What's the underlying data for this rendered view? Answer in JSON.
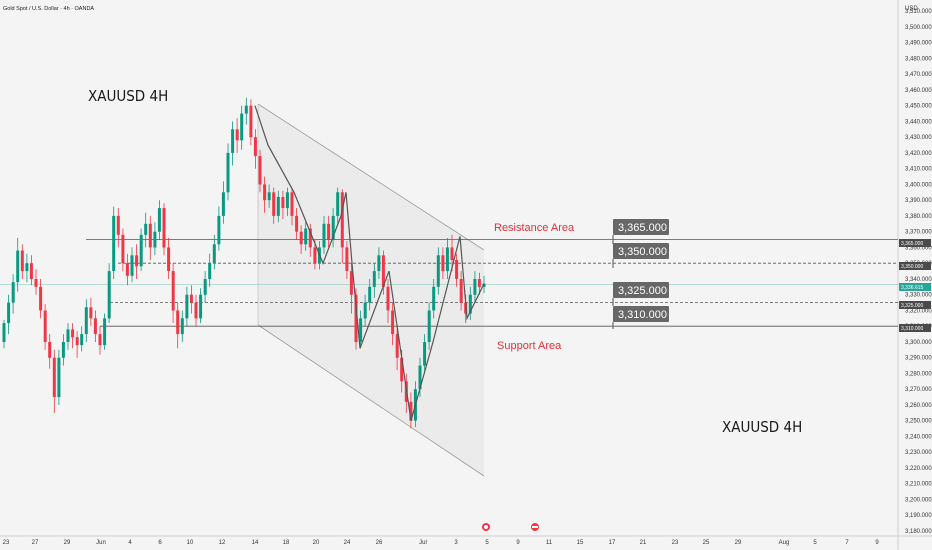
{
  "symbol": "Gold Spot / U.S. Dollar · 4h · OANDA",
  "currency": "USD",
  "titles": [
    "XAUUSD 4H",
    "XAUUSD 4H"
  ],
  "annotations": {
    "resistance": "Resistance Area",
    "support": "Support Area"
  },
  "level_boxes": [
    "3,365.000",
    "3,350.000",
    "3,325.000",
    "3,310.000"
  ],
  "price_tags": {
    "r365": "3,365.000",
    "r350": "3,350.000",
    "current": "3,336.615",
    "s325": "3,325.000",
    "s310": "3,310.000"
  },
  "colors": {
    "bull": "#089981",
    "bear": "#f23645",
    "accent": "#e0313c",
    "channel": "#9a9a9a",
    "box": "#676767",
    "current_line": "#26a69a"
  },
  "chart_data": {
    "type": "candlestick",
    "ylim": [
      3180,
      3512
    ],
    "yticks": [
      3180,
      3190,
      3200,
      3210,
      3220,
      3230,
      3240,
      3250,
      3260,
      3270,
      3280,
      3290,
      3300,
      3310,
      3320,
      3330,
      3340,
      3350,
      3360,
      3370,
      3380,
      3390,
      3400,
      3410,
      3420,
      3430,
      3440,
      3450,
      3460,
      3470,
      3480,
      3490,
      3500,
      3510
    ],
    "xticks": [
      "23",
      "27",
      "29",
      "Jun",
      "4",
      "6",
      "10",
      "12",
      "14",
      "18",
      "20",
      "24",
      "26",
      "Jul",
      "3",
      "5",
      "9",
      "11",
      "15",
      "17",
      "21",
      "23",
      "25",
      "29",
      "Aug",
      "5",
      "7",
      "9"
    ],
    "horizontal_levels": [
      {
        "price": 3365,
        "style": "solid"
      },
      {
        "price": 3350,
        "style": "dashed"
      },
      {
        "price": 3325,
        "style": "dashed"
      },
      {
        "price": 3310,
        "style": "solid"
      }
    ],
    "current_price": 3336.615,
    "path_points": [
      3450,
      3425,
      3395,
      3350,
      3380,
      3395,
      3350,
      3296,
      3345,
      3250,
      3300,
      3367,
      3315,
      3337
    ],
    "candles": [
      [
        3300,
        3312,
        3296,
        3314
      ],
      [
        3312,
        3325,
        3305,
        3330
      ],
      [
        3325,
        3338,
        3318,
        3343
      ],
      [
        3338,
        3358,
        3332,
        3366
      ],
      [
        3358,
        3345,
        3340,
        3362
      ],
      [
        3345,
        3350,
        3338,
        3356
      ],
      [
        3350,
        3340,
        3336,
        3355
      ],
      [
        3340,
        3335,
        3330,
        3346
      ],
      [
        3335,
        3320,
        3315,
        3340
      ],
      [
        3320,
        3300,
        3295,
        3324
      ],
      [
        3300,
        3290,
        3283,
        3305
      ],
      [
        3290,
        3265,
        3255,
        3295
      ],
      [
        3265,
        3290,
        3260,
        3295
      ],
      [
        3290,
        3300,
        3285,
        3305
      ],
      [
        3300,
        3308,
        3295,
        3312
      ],
      [
        3308,
        3303,
        3296,
        3312
      ],
      [
        3303,
        3298,
        3290,
        3307
      ],
      [
        3298,
        3305,
        3294,
        3310
      ],
      [
        3305,
        3322,
        3300,
        3327
      ],
      [
        3322,
        3315,
        3310,
        3328
      ],
      [
        3315,
        3305,
        3300,
        3320
      ],
      [
        3305,
        3298,
        3292,
        3310
      ],
      [
        3298,
        3315,
        3295,
        3318
      ],
      [
        3315,
        3345,
        3312,
        3350
      ],
      [
        3345,
        3380,
        3340,
        3386
      ],
      [
        3380,
        3368,
        3360,
        3385
      ],
      [
        3368,
        3350,
        3345,
        3372
      ],
      [
        3350,
        3342,
        3336,
        3356
      ],
      [
        3342,
        3355,
        3338,
        3360
      ],
      [
        3355,
        3348,
        3340,
        3362
      ],
      [
        3348,
        3368,
        3345,
        3372
      ],
      [
        3368,
        3375,
        3360,
        3382
      ],
      [
        3375,
        3360,
        3352,
        3380
      ],
      [
        3360,
        3370,
        3355,
        3376
      ],
      [
        3370,
        3385,
        3365,
        3390
      ],
      [
        3385,
        3360,
        3355,
        3388
      ],
      [
        3360,
        3345,
        3340,
        3366
      ],
      [
        3345,
        3320,
        3312,
        3350
      ],
      [
        3320,
        3305,
        3296,
        3325
      ],
      [
        3305,
        3315,
        3300,
        3320
      ],
      [
        3315,
        3330,
        3310,
        3335
      ],
      [
        3330,
        3325,
        3318,
        3336
      ],
      [
        3325,
        3315,
        3310,
        3330
      ],
      [
        3315,
        3330,
        3312,
        3334
      ],
      [
        3330,
        3340,
        3325,
        3345
      ],
      [
        3340,
        3350,
        3335,
        3356
      ],
      [
        3350,
        3362,
        3346,
        3368
      ],
      [
        3362,
        3380,
        3358,
        3386
      ],
      [
        3380,
        3395,
        3375,
        3402
      ],
      [
        3395,
        3420,
        3390,
        3426
      ],
      [
        3420,
        3435,
        3412,
        3440
      ],
      [
        3435,
        3428,
        3420,
        3442
      ],
      [
        3428,
        3445,
        3422,
        3450
      ],
      [
        3445,
        3450,
        3438,
        3455
      ],
      [
        3450,
        3430,
        3425,
        3454
      ],
      [
        3430,
        3418,
        3410,
        3435
      ],
      [
        3418,
        3400,
        3395,
        3422
      ],
      [
        3400,
        3390,
        3382,
        3405
      ],
      [
        3390,
        3395,
        3385,
        3400
      ],
      [
        3395,
        3380,
        3375,
        3398
      ],
      [
        3380,
        3392,
        3376,
        3396
      ],
      [
        3392,
        3385,
        3378,
        3396
      ],
      [
        3385,
        3395,
        3380,
        3398
      ],
      [
        3395,
        3380,
        3374,
        3398
      ],
      [
        3380,
        3370,
        3365,
        3385
      ],
      [
        3370,
        3362,
        3356,
        3374
      ],
      [
        3362,
        3372,
        3358,
        3376
      ],
      [
        3372,
        3360,
        3354,
        3375
      ],
      [
        3360,
        3350,
        3346,
        3365
      ],
      [
        3350,
        3360,
        3346,
        3364
      ],
      [
        3360,
        3375,
        3356,
        3380
      ],
      [
        3375,
        3365,
        3360,
        3380
      ],
      [
        3365,
        3380,
        3360,
        3385
      ],
      [
        3380,
        3395,
        3375,
        3398
      ],
      [
        3395,
        3360,
        3350,
        3397
      ],
      [
        3360,
        3345,
        3340,
        3364
      ],
      [
        3345,
        3330,
        3318,
        3350
      ],
      [
        3330,
        3300,
        3295,
        3334
      ],
      [
        3300,
        3315,
        3296,
        3320
      ],
      [
        3315,
        3325,
        3310,
        3330
      ],
      [
        3325,
        3335,
        3320,
        3340
      ],
      [
        3335,
        3345,
        3328,
        3350
      ],
      [
        3345,
        3355,
        3340,
        3360
      ],
      [
        3355,
        3335,
        3330,
        3358
      ],
      [
        3335,
        3320,
        3312,
        3340
      ],
      [
        3320,
        3305,
        3298,
        3325
      ],
      [
        3305,
        3290,
        3282,
        3310
      ],
      [
        3290,
        3275,
        3268,
        3295
      ],
      [
        3275,
        3262,
        3255,
        3280
      ],
      [
        3262,
        3250,
        3245,
        3268
      ],
      [
        3250,
        3270,
        3246,
        3275
      ],
      [
        3270,
        3285,
        3265,
        3290
      ],
      [
        3285,
        3300,
        3280,
        3305
      ],
      [
        3300,
        3320,
        3295,
        3325
      ],
      [
        3320,
        3335,
        3315,
        3340
      ],
      [
        3335,
        3355,
        3330,
        3360
      ],
      [
        3355,
        3345,
        3340,
        3360
      ],
      [
        3345,
        3360,
        3340,
        3366
      ],
      [
        3360,
        3352,
        3345,
        3368
      ],
      [
        3352,
        3340,
        3335,
        3356
      ],
      [
        3340,
        3325,
        3320,
        3345
      ],
      [
        3325,
        3318,
        3312,
        3330
      ],
      [
        3318,
        3330,
        3314,
        3335
      ],
      [
        3330,
        3340,
        3325,
        3345
      ],
      [
        3340,
        3335,
        3330,
        3344
      ],
      [
        3335,
        3337,
        3331,
        3342
      ]
    ]
  }
}
